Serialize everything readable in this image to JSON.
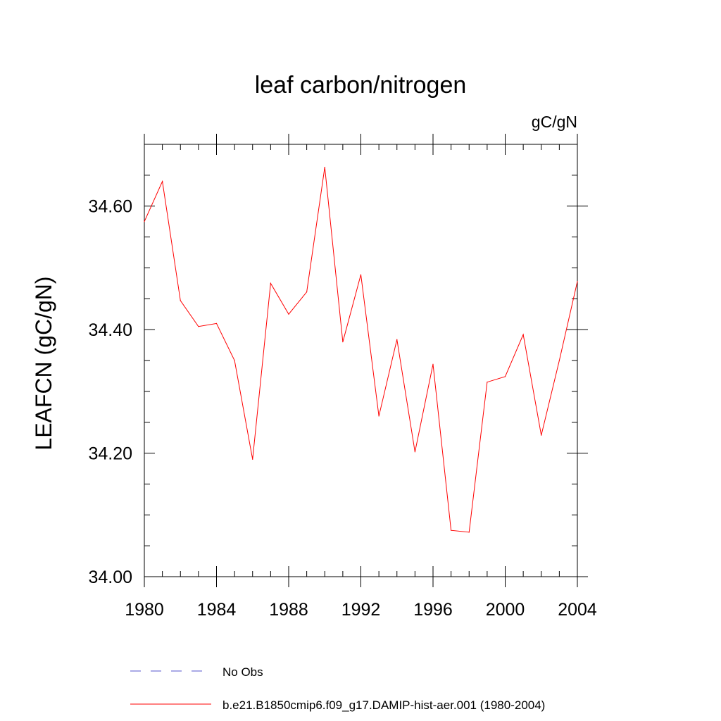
{
  "chart_data": {
    "type": "line",
    "title": "leaf carbon/nitrogen",
    "units_label": "gC/gN",
    "ylabel": "LEAFCN  (gC/gN)",
    "xlabel": "",
    "xlim": [
      1980,
      2004
    ],
    "ylim": [
      34.0,
      34.7
    ],
    "x_ticks": [
      1980,
      1984,
      1988,
      1992,
      1996,
      2000,
      2004
    ],
    "x_tick_labels": [
      "1980",
      "1984",
      "1988",
      "1992",
      "1996",
      "2000",
      "2004"
    ],
    "y_ticks": [
      34.0,
      34.2,
      34.4,
      34.6
    ],
    "y_tick_labels": [
      "34.00",
      "34.20",
      "34.40",
      "34.60"
    ],
    "x": [
      1980,
      1981,
      1982,
      1983,
      1984,
      1985,
      1986,
      1987,
      1988,
      1989,
      1990,
      1991,
      1992,
      1993,
      1994,
      1995,
      1996,
      1997,
      1998,
      1999,
      2000,
      2001,
      2002,
      2003,
      2004
    ],
    "series": [
      {
        "name": "b.e21.B1850cmip6.f09_g17.DAMIP-hist-aer.001 (1980-2004)",
        "color": "#ff0000",
        "style": "solid",
        "values": [
          34.575,
          34.64,
          34.447,
          34.405,
          34.41,
          34.35,
          34.19,
          34.475,
          34.425,
          34.461,
          34.663,
          34.38,
          34.489,
          34.26,
          34.384,
          34.202,
          34.344,
          34.075,
          34.072,
          34.315,
          34.324,
          34.392,
          34.229,
          34.35,
          34.478
        ]
      }
    ],
    "legend": [
      {
        "label": "No Obs",
        "color": "#5555cc",
        "style": "dashed"
      },
      {
        "label": "b.e21.B1850cmip6.f09_g17.DAMIP-hist-aer.001 (1980-2004)",
        "color": "#ff0000",
        "style": "solid"
      }
    ],
    "legend_position": "bottom",
    "grid": false
  }
}
